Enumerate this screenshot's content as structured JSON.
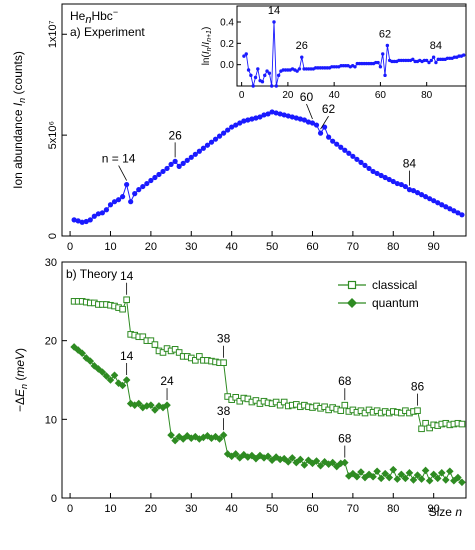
{
  "figure": {
    "species_label": "HenHbc⁻",
    "shared_xlabel": "Size n"
  },
  "chart_data": [
    {
      "type": "scatter",
      "panel_label": "a) Experiment",
      "ylabel": "Ion abundance In (counts)",
      "xlim": [
        -2,
        98
      ],
      "ylim": [
        0,
        11500000
      ],
      "x_ticks": [
        0,
        10,
        20,
        30,
        40,
        50,
        60,
        70,
        80,
        90
      ],
      "y_ticks": [
        {
          "value": 0,
          "label": "0"
        },
        {
          "value": 5000000,
          "label": "5x10⁶"
        },
        {
          "value": 10000000,
          "label": "1x10⁷"
        }
      ],
      "series": [
        {
          "color": "#1a1aff",
          "x": [
            1,
            2,
            3,
            4,
            5,
            6,
            7,
            8,
            9,
            10,
            11,
            12,
            13,
            14,
            15,
            16,
            17,
            18,
            19,
            20,
            21,
            22,
            23,
            24,
            25,
            26,
            27,
            28,
            29,
            30,
            31,
            32,
            33,
            34,
            35,
            36,
            37,
            38,
            39,
            40,
            41,
            42,
            43,
            44,
            45,
            46,
            47,
            48,
            49,
            50,
            51,
            52,
            53,
            54,
            55,
            56,
            57,
            58,
            59,
            60,
            61,
            62,
            63,
            64,
            65,
            66,
            67,
            68,
            69,
            70,
            71,
            72,
            73,
            74,
            75,
            76,
            77,
            78,
            79,
            80,
            81,
            82,
            83,
            84,
            85,
            86,
            87,
            88,
            89,
            90,
            91,
            92,
            93,
            94,
            95,
            96,
            97
          ],
          "y": [
            800000,
            750000,
            680000,
            720000,
            800000,
            980000,
            1100000,
            1150000,
            1300000,
            1550000,
            1700000,
            1800000,
            1950000,
            2550000,
            1700000,
            2100000,
            2300000,
            2450000,
            2600000,
            2750000,
            2900000,
            3050000,
            3200000,
            3350000,
            3550000,
            3700000,
            3450000,
            3600000,
            3750000,
            3900000,
            4050000,
            4200000,
            4350000,
            4500000,
            4650000,
            4800000,
            4950000,
            5100000,
            5250000,
            5400000,
            5500000,
            5600000,
            5700000,
            5750000,
            5800000,
            5850000,
            5900000,
            6000000,
            6050000,
            6150000,
            6100000,
            6050000,
            6000000,
            5950000,
            5900000,
            5850000,
            5800000,
            5750000,
            5650000,
            5600000,
            5500000,
            5100000,
            5400000,
            4900000,
            4700000,
            4550000,
            4400000,
            4250000,
            4100000,
            3950000,
            3800000,
            3650000,
            3500000,
            3350000,
            3200000,
            3100000,
            3000000,
            2900000,
            2800000,
            2700000,
            2600000,
            2550000,
            2450000,
            2300000,
            2250000,
            2150000,
            2050000,
            1950000,
            1850000,
            1750000,
            1650000,
            1550000,
            1450000,
            1350000,
            1250000,
            1150000,
            1050000
          ]
        }
      ],
      "annotations": [
        {
          "text": "n = 14",
          "x": 14,
          "y": 2550000
        },
        {
          "text": "26",
          "x": 26,
          "y": 3700000
        },
        {
          "text": "60",
          "x": 60,
          "y": 5600000
        },
        {
          "text": "62",
          "x": 62,
          "y": 5100000
        },
        {
          "text": "84",
          "x": 84,
          "y": 2300000
        }
      ],
      "inset": {
        "type": "scatter",
        "ylabel": "ln(In/In+1)",
        "xlim": [
          -2,
          97
        ],
        "ylim": [
          -0.2,
          0.55
        ],
        "x_ticks": [
          0,
          20,
          40,
          60,
          80
        ],
        "y_ticks": [
          {
            "value": 0.0,
            "label": "0.0"
          },
          {
            "value": 0.2,
            "label": "0.2"
          },
          {
            "value": 0.4,
            "label": "0.4"
          }
        ],
        "series": [
          {
            "color": "#1a1aff",
            "x": [
              1,
              2,
              3,
              4,
              5,
              6,
              7,
              8,
              9,
              10,
              11,
              12,
              13,
              14,
              15,
              16,
              17,
              18,
              19,
              20,
              21,
              22,
              23,
              24,
              25,
              26,
              27,
              28,
              29,
              30,
              31,
              32,
              33,
              34,
              35,
              36,
              37,
              38,
              39,
              40,
              41,
              42,
              43,
              44,
              45,
              46,
              47,
              48,
              49,
              50,
              51,
              52,
              53,
              54,
              55,
              56,
              57,
              58,
              59,
              60,
              61,
              62,
              63,
              64,
              65,
              66,
              67,
              68,
              69,
              70,
              71,
              72,
              73,
              74,
              75,
              76,
              77,
              78,
              79,
              80,
              81,
              82,
              83,
              84,
              85,
              86,
              87,
              88,
              89,
              90,
              91,
              92,
              93,
              94,
              95,
              96
            ],
            "y": [
              0.08,
              0.1,
              -0.05,
              -0.1,
              -0.2,
              -0.12,
              -0.04,
              -0.15,
              -0.16,
              -0.1,
              -0.06,
              -0.08,
              -0.2,
              0.4,
              -0.2,
              -0.1,
              -0.06,
              -0.05,
              -0.05,
              -0.05,
              -0.05,
              -0.04,
              -0.05,
              -0.06,
              -0.04,
              0.07,
              -0.04,
              -0.04,
              -0.04,
              -0.04,
              -0.04,
              -0.03,
              -0.03,
              -0.03,
              -0.03,
              -0.03,
              -0.03,
              -0.03,
              -0.02,
              -0.02,
              -0.02,
              -0.02,
              -0.01,
              -0.01,
              -0.01,
              -0.01,
              -0.02,
              -0.01,
              -0.02,
              0.01,
              0.01,
              0.01,
              0.01,
              0.01,
              0.01,
              0.01,
              0.01,
              0.02,
              0.02,
              -0.02,
              0.1,
              -0.1,
              0.18,
              0.04,
              0.03,
              0.03,
              0.03,
              0.04,
              0.04,
              0.04,
              0.04,
              0.04,
              0.04,
              0.05,
              0.03,
              0.03,
              0.04,
              0.03,
              0.04,
              0.04,
              0.02,
              0.04,
              0.07,
              0.02,
              0.05,
              0.05,
              0.05,
              0.05,
              0.06,
              0.06,
              0.06,
              0.07,
              0.07,
              0.08,
              0.08,
              0.09
            ]
          }
        ],
        "annotations": [
          {
            "text": "14",
            "x": 14,
            "y": 0.4
          },
          {
            "text": "26",
            "x": 26,
            "y": 0.07
          },
          {
            "text": "62",
            "x": 62,
            "y": 0.18
          },
          {
            "text": "84",
            "x": 84,
            "y": 0.07
          }
        ]
      }
    },
    {
      "type": "scatter",
      "panel_label": "b) Theory",
      "ylabel": "−ΔEn (meV)",
      "xlabel": "Size n",
      "xlim": [
        -2,
        98
      ],
      "ylim": [
        0,
        30
      ],
      "x_ticks": [
        0,
        10,
        20,
        30,
        40,
        50,
        60,
        70,
        80,
        90
      ],
      "y_ticks": [
        {
          "value": 0,
          "label": "0"
        },
        {
          "value": 10,
          "label": "10"
        },
        {
          "value": 20,
          "label": "20"
        },
        {
          "value": 30,
          "label": "30"
        }
      ],
      "legend_position": "top-right",
      "series": [
        {
          "name": "classical",
          "marker": "open-square",
          "color": "#2e8b22",
          "x": [
            1,
            2,
            3,
            4,
            5,
            6,
            7,
            8,
            9,
            10,
            11,
            12,
            13,
            14,
            15,
            16,
            17,
            18,
            19,
            20,
            21,
            22,
            23,
            24,
            25,
            26,
            27,
            28,
            29,
            30,
            31,
            32,
            33,
            34,
            35,
            36,
            37,
            38,
            39,
            40,
            41,
            42,
            43,
            44,
            45,
            46,
            47,
            48,
            49,
            50,
            51,
            52,
            53,
            54,
            55,
            56,
            57,
            58,
            59,
            60,
            61,
            62,
            63,
            64,
            65,
            66,
            67,
            68,
            69,
            70,
            71,
            72,
            73,
            74,
            75,
            76,
            77,
            78,
            79,
            80,
            81,
            82,
            83,
            84,
            85,
            86,
            87,
            88,
            89,
            90,
            91,
            92,
            93,
            94,
            95,
            96,
            97
          ],
          "y": [
            25.0,
            25.0,
            25.0,
            24.9,
            24.8,
            24.8,
            24.6,
            24.6,
            24.6,
            24.5,
            24.4,
            24.2,
            24.0,
            25.2,
            20.8,
            20.7,
            20.5,
            20.5,
            20.0,
            20.0,
            19.5,
            18.7,
            18.5,
            19.0,
            18.7,
            18.9,
            18.5,
            18.0,
            18.0,
            17.8,
            17.5,
            18.0,
            17.5,
            17.5,
            17.4,
            17.3,
            17.2,
            17.2,
            12.9,
            12.5,
            12.8,
            12.3,
            12.7,
            12.6,
            12.2,
            12.4,
            12.0,
            12.3,
            12.1,
            12.0,
            12.2,
            11.8,
            12.2,
            11.7,
            11.8,
            11.9,
            11.6,
            11.8,
            11.6,
            11.5,
            11.7,
            11.4,
            11.6,
            11.2,
            11.5,
            11.3,
            11.1,
            11.8,
            11.0,
            11.2,
            10.9,
            11.1,
            10.8,
            11.2,
            10.9,
            11.1,
            10.8,
            11.0,
            10.8,
            11.0,
            10.9,
            10.8,
            11.1,
            10.8,
            11.0,
            11.1,
            8.8,
            9.5,
            8.9,
            9.3,
            9.2,
            9.4,
            9.5,
            9.3,
            9.4,
            9.5,
            9.4
          ]
        },
        {
          "name": "quantum",
          "marker": "filled-diamond",
          "color": "#2e8b22",
          "x": [
            1,
            2,
            3,
            4,
            5,
            6,
            7,
            8,
            9,
            10,
            11,
            12,
            13,
            14,
            15,
            16,
            17,
            18,
            19,
            20,
            21,
            22,
            23,
            24,
            25,
            26,
            27,
            28,
            29,
            30,
            31,
            32,
            33,
            34,
            35,
            36,
            37,
            38,
            39,
            40,
            41,
            42,
            43,
            44,
            45,
            46,
            47,
            48,
            49,
            50,
            51,
            52,
            53,
            54,
            55,
            56,
            57,
            58,
            59,
            60,
            61,
            62,
            63,
            64,
            65,
            66,
            67,
            68,
            69,
            70,
            71,
            72,
            73,
            74,
            75,
            76,
            77,
            78,
            79,
            80,
            81,
            82,
            83,
            84,
            85,
            86,
            87,
            88,
            89,
            90,
            91,
            92,
            93,
            94,
            95,
            96,
            97
          ],
          "y": [
            19.2,
            18.8,
            18.4,
            17.8,
            17.4,
            16.8,
            16.4,
            16.0,
            15.5,
            15.0,
            15.6,
            14.6,
            14.3,
            15.0,
            12.0,
            11.8,
            12.0,
            11.5,
            11.7,
            11.8,
            11.2,
            11.7,
            11.5,
            11.8,
            8.0,
            7.3,
            7.8,
            7.5,
            7.9,
            7.6,
            7.8,
            7.5,
            7.7,
            7.9,
            7.6,
            7.8,
            7.5,
            8.0,
            5.6,
            5.3,
            5.6,
            5.1,
            5.5,
            5.2,
            5.4,
            5.0,
            5.4,
            5.1,
            5.3,
            4.8,
            5.2,
            4.9,
            5.0,
            4.6,
            5.1,
            4.5,
            4.9,
            4.2,
            4.8,
            4.4,
            4.7,
            4.1,
            4.6,
            4.3,
            4.5,
            4.0,
            4.4,
            4.5,
            2.8,
            3.1,
            2.7,
            3.3,
            2.6,
            3.0,
            2.7,
            3.4,
            2.5,
            3.1,
            2.6,
            3.6,
            2.4,
            3.0,
            2.5,
            3.2,
            2.3,
            2.9,
            2.4,
            3.5,
            2.2,
            3.0,
            2.5,
            3.2,
            2.3,
            3.4,
            2.2,
            2.6,
            2.0
          ]
        }
      ],
      "annotations": [
        {
          "text": "14",
          "x": 14,
          "y": 25.2,
          "series": "classical"
        },
        {
          "text": "14",
          "x": 14,
          "y": 15.0,
          "series": "quantum"
        },
        {
          "text": "24",
          "x": 24,
          "y": 11.8,
          "series": "quantum"
        },
        {
          "text": "38",
          "x": 38,
          "y": 17.2,
          "series": "classical"
        },
        {
          "text": "38",
          "x": 38,
          "y": 8.0,
          "series": "quantum"
        },
        {
          "text": "68",
          "x": 68,
          "y": 11.8,
          "series": "classical"
        },
        {
          "text": "68",
          "x": 68,
          "y": 4.5,
          "series": "quantum"
        },
        {
          "text": "86",
          "x": 86,
          "y": 11.1,
          "series": "classical"
        }
      ]
    }
  ]
}
